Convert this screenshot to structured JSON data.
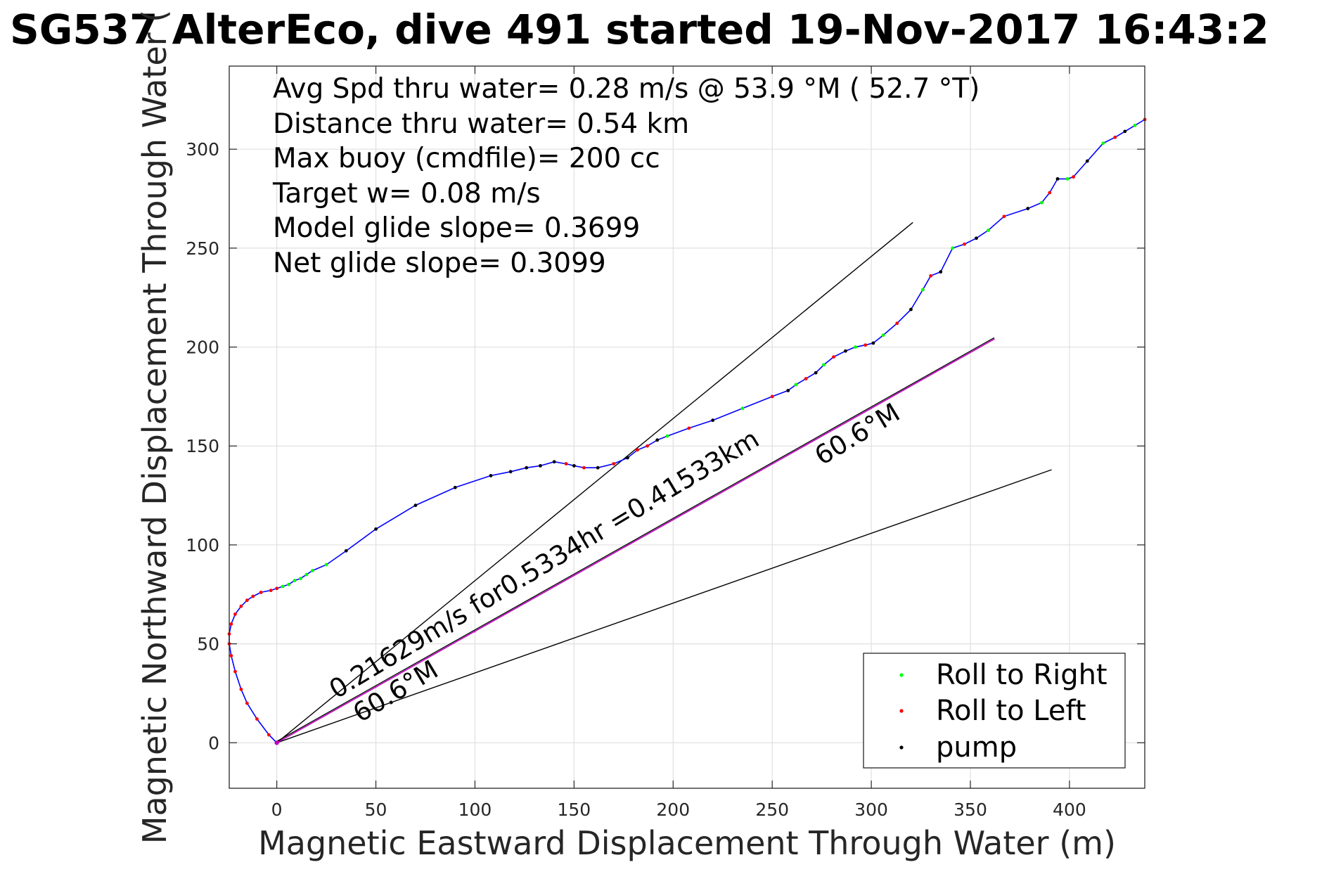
{
  "chart_data": {
    "type": "line",
    "title": "SG537 AlterEco, dive 491 started 19-Nov-2017 16:43:2",
    "xlabel": "Magnetic Eastward Displacement Through Water (m)",
    "ylabel": "Magnetic Northward Displacement Through Water (",
    "xlim": [
      -24,
      438
    ],
    "ylim": [
      -23,
      342
    ],
    "x_ticks": [
      0,
      50,
      100,
      150,
      200,
      250,
      300,
      350,
      400
    ],
    "y_ticks": [
      0,
      50,
      100,
      150,
      200,
      250,
      300
    ],
    "grid": true,
    "legend_position": "bottom-right",
    "stats_text": [
      "Avg Spd thru water=  0.28 m/s @  53.9 °M ( 52.7 °T)",
      "Distance thru water=  0.54 km",
      "Max buoy (cmdfile)= 200 cc",
      "Target w= 0.08 m/s",
      "Model glide slope= 0.3699",
      "Net glide slope= 0.3099"
    ],
    "annotations": [
      {
        "text": "0.21629m/s for0.5334hr =0.41533km",
        "x": 30,
        "y": 22,
        "rotation_deg": 31
      },
      {
        "text": "60.6°M",
        "x": 275,
        "y": 140,
        "rotation_deg": 31
      },
      {
        "text": "60.6°M",
        "x": 42,
        "y": 10,
        "rotation_deg": 31
      }
    ],
    "colors": {
      "track": "#0000ff",
      "roll_right": "#00ff00",
      "roll_left": "#ff0000",
      "pump": "#000000",
      "current_line": "#bf00bf",
      "reference_lines": "#000000",
      "grid": "#e0e0e0",
      "axes": "#262626"
    },
    "reference_lines": [
      {
        "x": [
          0,
          321
        ],
        "y": [
          0,
          263
        ]
      },
      {
        "x": [
          0,
          391
        ],
        "y": [
          0,
          138
        ]
      }
    ],
    "current_line": {
      "x": [
        0,
        362
      ],
      "y": [
        0,
        204
      ]
    },
    "series": [
      {
        "kind": "track",
        "x": [
          0,
          -4,
          -10,
          -15,
          -18,
          -21,
          -23,
          -24,
          -24,
          -23,
          -21,
          -18,
          -15,
          -12,
          -8,
          -3,
          0,
          3,
          6,
          9,
          12,
          15,
          18,
          25,
          35,
          50,
          70,
          90,
          108,
          118,
          126,
          133,
          140,
          146,
          150,
          155,
          162,
          170,
          177,
          182,
          187,
          192,
          197,
          208,
          220,
          235,
          250,
          258,
          262,
          267,
          272,
          276,
          281,
          287,
          292,
          297,
          301,
          306,
          313,
          320,
          326,
          330,
          335,
          341,
          347,
          353,
          359,
          367,
          379,
          386,
          390,
          394,
          399,
          402,
          409,
          417,
          423,
          428,
          433,
          438
        ],
        "y": [
          0,
          4,
          12,
          20,
          27,
          36,
          44,
          50,
          55,
          60,
          65,
          69,
          72,
          74,
          76,
          77,
          78,
          79,
          80,
          82,
          83,
          85,
          87,
          90,
          97,
          108,
          120,
          129,
          135,
          137,
          139,
          140,
          142,
          141,
          140,
          139,
          139,
          141,
          144,
          148,
          150,
          153,
          155,
          159,
          163,
          169,
          175,
          178,
          181,
          184,
          187,
          191,
          195,
          198,
          200,
          201,
          202,
          206,
          212,
          219,
          229,
          236,
          238,
          250,
          252,
          255,
          259,
          266,
          270,
          273,
          278,
          285,
          285,
          286,
          294,
          303,
          306,
          309,
          312,
          315
        ]
      },
      {
        "kind": "current",
        "x": [
          0,
          50,
          100,
          150,
          200,
          250,
          300,
          362
        ],
        "y": [
          0,
          28,
          56,
          85,
          113,
          141,
          169,
          204
        ]
      }
    ],
    "legend": [
      {
        "label": "Roll to Right",
        "color": "#00ff00"
      },
      {
        "label": "Roll to Left",
        "color": "#ff0000"
      },
      {
        "label": "pump",
        "color": "#000000"
      }
    ]
  }
}
